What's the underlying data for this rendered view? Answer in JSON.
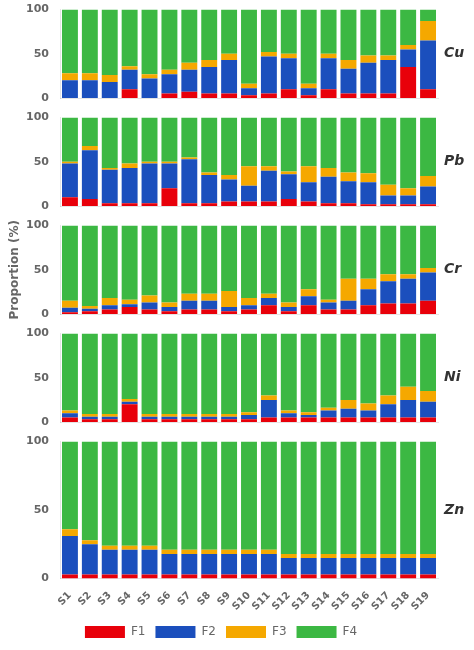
{
  "chart_data": [
    {
      "type": "bar",
      "title": "Cu",
      "stacked": true,
      "grid": false,
      "tick_labels": "y",
      "categories": [
        "S1",
        "S2",
        "S3",
        "S4",
        "S5",
        "S6",
        "S7",
        "S8",
        "S9",
        "S10",
        "S11",
        "S12",
        "S13",
        "S14",
        "S15",
        "S16",
        "S17",
        "S18",
        "S19"
      ],
      "ylim": [
        0,
        100
      ],
      "yticks": [
        0,
        50,
        100
      ],
      "series": [
        {
          "name": "F1",
          "color": "#e8000a",
          "values": [
            0,
            0,
            0,
            10,
            0,
            5,
            7,
            5,
            5,
            3,
            5,
            10,
            3,
            10,
            5,
            5,
            5,
            35,
            10
          ]
        },
        {
          "name": "F2",
          "color": "#1b4fbd",
          "values": [
            20,
            20,
            18,
            22,
            22,
            22,
            25,
            30,
            38,
            8,
            42,
            35,
            8,
            35,
            28,
            35,
            38,
            20,
            55
          ]
        },
        {
          "name": "F3",
          "color": "#f5a800",
          "values": [
            8,
            8,
            8,
            4,
            5,
            5,
            8,
            8,
            7,
            5,
            5,
            5,
            5,
            5,
            10,
            8,
            5,
            5,
            22
          ]
        },
        {
          "name": "F4",
          "color": "#3cb843",
          "values": [
            72,
            72,
            74,
            64,
            73,
            68,
            60,
            57,
            50,
            84,
            48,
            50,
            84,
            50,
            57,
            52,
            52,
            40,
            13
          ]
        }
      ]
    },
    {
      "type": "bar",
      "title": "Pb",
      "stacked": true,
      "grid": false,
      "tick_labels": "y",
      "categories": [
        "S1",
        "S2",
        "S3",
        "S4",
        "S5",
        "S6",
        "S7",
        "S8",
        "S9",
        "S10",
        "S11",
        "S12",
        "S13",
        "S14",
        "S15",
        "S16",
        "S17",
        "S18",
        "S19"
      ],
      "ylim": [
        0,
        100
      ],
      "yticks": [
        0,
        50,
        100
      ],
      "series": [
        {
          "name": "F1",
          "color": "#e8000a",
          "values": [
            10,
            8,
            3,
            3,
            3,
            20,
            3,
            3,
            5,
            5,
            5,
            8,
            5,
            3,
            3,
            2,
            2,
            2,
            2
          ]
        },
        {
          "name": "F2",
          "color": "#1b4fbd",
          "values": [
            38,
            55,
            38,
            40,
            45,
            28,
            50,
            32,
            25,
            18,
            35,
            28,
            22,
            30,
            25,
            25,
            10,
            10,
            20
          ]
        },
        {
          "name": "F3",
          "color": "#f5a800",
          "values": [
            2,
            5,
            2,
            5,
            2,
            2,
            2,
            3,
            5,
            22,
            5,
            3,
            18,
            10,
            10,
            10,
            12,
            8,
            12
          ]
        },
        {
          "name": "F4",
          "color": "#3cb843",
          "values": [
            50,
            32,
            57,
            52,
            50,
            50,
            45,
            62,
            65,
            55,
            55,
            61,
            55,
            57,
            62,
            63,
            76,
            80,
            66
          ]
        }
      ]
    },
    {
      "type": "bar",
      "title": "Cr",
      "ylabel": "Proportion (%)",
      "stacked": true,
      "grid": false,
      "tick_labels": "y",
      "categories": [
        "S1",
        "S2",
        "S3",
        "S4",
        "S5",
        "S6",
        "S7",
        "S8",
        "S9",
        "S10",
        "S11",
        "S12",
        "S13",
        "S14",
        "S15",
        "S16",
        "S17",
        "S18",
        "S19"
      ],
      "ylim": [
        0,
        100
      ],
      "yticks": [
        0,
        50,
        100
      ],
      "series": [
        {
          "name": "F1",
          "color": "#e8000a",
          "values": [
            2,
            3,
            5,
            8,
            5,
            3,
            5,
            5,
            3,
            5,
            10,
            3,
            10,
            5,
            5,
            10,
            12,
            12,
            15
          ]
        },
        {
          "name": "F2",
          "color": "#1b4fbd",
          "values": [
            5,
            3,
            5,
            3,
            8,
            5,
            10,
            10,
            5,
            5,
            8,
            5,
            10,
            8,
            10,
            18,
            25,
            28,
            32
          ]
        },
        {
          "name": "F3",
          "color": "#f5a800",
          "values": [
            8,
            3,
            8,
            5,
            8,
            5,
            8,
            8,
            18,
            8,
            5,
            5,
            8,
            3,
            25,
            12,
            8,
            5,
            5
          ]
        },
        {
          "name": "F4",
          "color": "#3cb843",
          "values": [
            85,
            91,
            82,
            84,
            79,
            87,
            77,
            77,
            74,
            82,
            77,
            87,
            72,
            84,
            60,
            60,
            55,
            55,
            48
          ]
        }
      ]
    },
    {
      "type": "bar",
      "title": "Ni",
      "stacked": true,
      "grid": false,
      "tick_labels": "y",
      "categories": [
        "S1",
        "S2",
        "S3",
        "S4",
        "S5",
        "S6",
        "S7",
        "S8",
        "S9",
        "S10",
        "S11",
        "S12",
        "S13",
        "S14",
        "S15",
        "S16",
        "S17",
        "S18",
        "S19"
      ],
      "ylim": [
        0,
        100
      ],
      "yticks": [
        0,
        50,
        100
      ],
      "series": [
        {
          "name": "F1",
          "color": "#e8000a",
          "values": [
            5,
            3,
            3,
            20,
            3,
            3,
            3,
            3,
            3,
            3,
            5,
            5,
            5,
            5,
            5,
            5,
            5,
            5,
            5
          ]
        },
        {
          "name": "F2",
          "color": "#1b4fbd",
          "values": [
            5,
            3,
            3,
            3,
            3,
            3,
            3,
            3,
            3,
            5,
            20,
            5,
            3,
            8,
            10,
            8,
            15,
            20,
            18
          ]
        },
        {
          "name": "F3",
          "color": "#f5a800",
          "values": [
            3,
            3,
            3,
            3,
            3,
            3,
            3,
            3,
            3,
            3,
            5,
            3,
            3,
            3,
            10,
            8,
            10,
            15,
            12
          ]
        },
        {
          "name": "F4",
          "color": "#3cb843",
          "values": [
            87,
            91,
            91,
            74,
            91,
            91,
            91,
            91,
            91,
            89,
            70,
            87,
            89,
            84,
            75,
            79,
            70,
            60,
            65
          ]
        }
      ]
    },
    {
      "type": "bar",
      "title": "Zn",
      "stacked": true,
      "grid": false,
      "legend": "bottom",
      "categories": [
        "S1",
        "S2",
        "S3",
        "S4",
        "S5",
        "S6",
        "S7",
        "S8",
        "S9",
        "S10",
        "S11",
        "S12",
        "S13",
        "S14",
        "S15",
        "S16",
        "S17",
        "S18",
        "S19"
      ],
      "ylim": [
        0,
        100
      ],
      "yticks": [
        0,
        50,
        100
      ],
      "series": [
        {
          "name": "F1",
          "color": "#e8000a",
          "values": [
            3,
            3,
            3,
            3,
            3,
            3,
            3,
            3,
            3,
            3,
            3,
            3,
            3,
            3,
            3,
            3,
            3,
            3,
            3
          ]
        },
        {
          "name": "F2",
          "color": "#1b4fbd",
          "values": [
            28,
            22,
            18,
            18,
            18,
            15,
            15,
            15,
            15,
            15,
            15,
            12,
            12,
            12,
            12,
            12,
            12,
            12,
            12
          ]
        },
        {
          "name": "F3",
          "color": "#f5a800",
          "values": [
            5,
            3,
            3,
            3,
            3,
            3,
            3,
            3,
            3,
            3,
            3,
            3,
            3,
            3,
            3,
            3,
            3,
            3,
            3
          ]
        },
        {
          "name": "F4",
          "color": "#3cb843",
          "values": [
            64,
            72,
            76,
            76,
            76,
            79,
            79,
            79,
            79,
            79,
            79,
            82,
            82,
            82,
            82,
            82,
            82,
            82,
            82
          ]
        }
      ]
    }
  ]
}
